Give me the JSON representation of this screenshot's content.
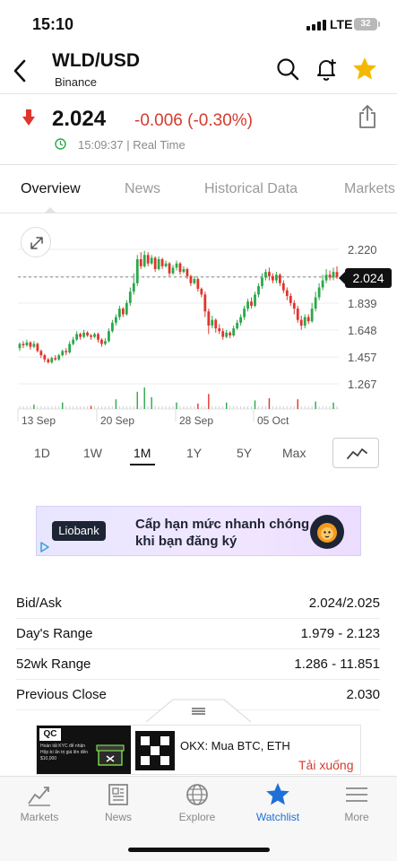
{
  "status_bar": {
    "time": "15:10",
    "network": "LTE",
    "battery": "32"
  },
  "header": {
    "title": "WLD/USD",
    "exchange": "Binance"
  },
  "quote": {
    "price": "2.024",
    "change": "-0.006 (-0.30%)",
    "timestamp": "15:09:37 | Real Time",
    "direction": "down"
  },
  "tabs": [
    {
      "label": "Overview",
      "active": true
    },
    {
      "label": "News",
      "active": false
    },
    {
      "label": "Historical Data",
      "active": false
    },
    {
      "label": "Markets",
      "active": false
    }
  ],
  "chart_data": {
    "type": "candlestick",
    "y_ticks": [
      "2.220",
      "2.029",
      "1.839",
      "1.648",
      "1.457",
      "1.267"
    ],
    "x_ticks": [
      "13 Sep",
      "20 Sep",
      "28 Sep",
      "05 Oct"
    ],
    "ylim": [
      1.2,
      2.3
    ],
    "current_price_label": "2.024",
    "current_price": 2.024,
    "up_color": "#2aa84a",
    "down_color": "#e0342b",
    "candles": [
      [
        1.52,
        1.55,
        1.5,
        1.56
      ],
      [
        1.55,
        1.54,
        1.52,
        1.57
      ],
      [
        1.54,
        1.56,
        1.53,
        1.58
      ],
      [
        1.56,
        1.53,
        1.51,
        1.57
      ],
      [
        1.53,
        1.55,
        1.52,
        1.57
      ],
      [
        1.55,
        1.5,
        1.49,
        1.56
      ],
      [
        1.5,
        1.47,
        1.45,
        1.51
      ],
      [
        1.47,
        1.44,
        1.42,
        1.48
      ],
      [
        1.44,
        1.42,
        1.41,
        1.45
      ],
      [
        1.42,
        1.45,
        1.41,
        1.46
      ],
      [
        1.45,
        1.44,
        1.43,
        1.47
      ],
      [
        1.44,
        1.47,
        1.43,
        1.48
      ],
      [
        1.47,
        1.5,
        1.46,
        1.51
      ],
      [
        1.5,
        1.49,
        1.47,
        1.52
      ],
      [
        1.49,
        1.55,
        1.48,
        1.57
      ],
      [
        1.55,
        1.58,
        1.54,
        1.6
      ],
      [
        1.58,
        1.62,
        1.57,
        1.64
      ],
      [
        1.62,
        1.6,
        1.58,
        1.63
      ],
      [
        1.6,
        1.63,
        1.59,
        1.65
      ],
      [
        1.63,
        1.61,
        1.6,
        1.64
      ],
      [
        1.61,
        1.6,
        1.58,
        1.62
      ],
      [
        1.6,
        1.62,
        1.59,
        1.63
      ],
      [
        1.62,
        1.58,
        1.56,
        1.63
      ],
      [
        1.58,
        1.55,
        1.53,
        1.59
      ],
      [
        1.55,
        1.57,
        1.54,
        1.59
      ],
      [
        1.57,
        1.64,
        1.56,
        1.66
      ],
      [
        1.64,
        1.7,
        1.63,
        1.72
      ],
      [
        1.7,
        1.74,
        1.68,
        1.76
      ],
      [
        1.74,
        1.8,
        1.72,
        1.82
      ],
      [
        1.8,
        1.76,
        1.74,
        1.81
      ],
      [
        1.76,
        1.84,
        1.75,
        1.86
      ],
      [
        1.84,
        1.92,
        1.82,
        1.95
      ],
      [
        1.92,
        1.98,
        1.9,
        2.05
      ],
      [
        1.98,
        2.15,
        1.96,
        2.18
      ],
      [
        2.15,
        2.1,
        2.08,
        2.2
      ],
      [
        2.1,
        2.18,
        2.09,
        2.21
      ],
      [
        2.18,
        2.12,
        2.1,
        2.2
      ],
      [
        2.12,
        2.16,
        2.11,
        2.18
      ],
      [
        2.16,
        2.08,
        2.06,
        2.17
      ],
      [
        2.08,
        2.15,
        2.07,
        2.17
      ],
      [
        2.15,
        2.1,
        2.08,
        2.16
      ],
      [
        2.1,
        2.12,
        2.09,
        2.14
      ],
      [
        2.12,
        2.05,
        2.03,
        2.13
      ],
      [
        2.05,
        2.09,
        2.04,
        2.11
      ],
      [
        2.09,
        2.12,
        2.07,
        2.14
      ],
      [
        2.12,
        2.06,
        2.04,
        2.13
      ],
      [
        2.06,
        2.08,
        2.05,
        2.1
      ],
      [
        2.08,
        2.03,
        2.01,
        2.09
      ],
      [
        2.03,
        1.98,
        1.96,
        2.04
      ],
      [
        1.98,
        2.01,
        1.97,
        2.03
      ],
      [
        2.01,
        1.94,
        1.92,
        2.02
      ],
      [
        1.94,
        1.9,
        1.88,
        1.95
      ],
      [
        1.9,
        1.78,
        1.74,
        1.92
      ],
      [
        1.78,
        1.68,
        1.62,
        1.8
      ],
      [
        1.68,
        1.72,
        1.66,
        1.75
      ],
      [
        1.72,
        1.66,
        1.63,
        1.73
      ],
      [
        1.66,
        1.64,
        1.62,
        1.69
      ],
      [
        1.64,
        1.6,
        1.58,
        1.66
      ],
      [
        1.6,
        1.63,
        1.59,
        1.65
      ],
      [
        1.63,
        1.61,
        1.59,
        1.64
      ],
      [
        1.61,
        1.66,
        1.6,
        1.68
      ],
      [
        1.66,
        1.7,
        1.65,
        1.72
      ],
      [
        1.7,
        1.74,
        1.68,
        1.76
      ],
      [
        1.74,
        1.8,
        1.72,
        1.82
      ],
      [
        1.8,
        1.85,
        1.78,
        1.87
      ],
      [
        1.85,
        1.82,
        1.8,
        1.88
      ],
      [
        1.82,
        1.9,
        1.81,
        1.92
      ],
      [
        1.9,
        1.96,
        1.88,
        1.98
      ],
      [
        1.96,
        2.02,
        1.94,
        2.05
      ],
      [
        2.02,
        2.06,
        2.0,
        2.08
      ],
      [
        2.06,
        2.03,
        2.0,
        2.09
      ],
      [
        2.03,
        2.0,
        1.98,
        2.05
      ],
      [
        2.0,
        2.04,
        1.98,
        2.06
      ],
      [
        2.04,
        1.98,
        1.96,
        2.05
      ],
      [
        1.98,
        1.93,
        1.91,
        2.0
      ],
      [
        1.93,
        1.89,
        1.86,
        1.95
      ],
      [
        1.89,
        1.84,
        1.82,
        1.91
      ],
      [
        1.84,
        1.8,
        1.76,
        1.86
      ],
      [
        1.8,
        1.72,
        1.7,
        1.82
      ],
      [
        1.72,
        1.68,
        1.65,
        1.75
      ],
      [
        1.68,
        1.74,
        1.66,
        1.76
      ],
      [
        1.74,
        1.71,
        1.69,
        1.76
      ],
      [
        1.71,
        1.8,
        1.7,
        1.84
      ],
      [
        1.8,
        1.88,
        1.78,
        1.92
      ],
      [
        1.88,
        1.95,
        1.86,
        1.98
      ],
      [
        1.95,
        2.0,
        1.93,
        2.04
      ],
      [
        2.0,
        2.04,
        1.98,
        2.08
      ],
      [
        2.04,
        2.02,
        2.0,
        2.07
      ],
      [
        2.02,
        2.06,
        2.0,
        2.09
      ],
      [
        2.06,
        2.024,
        2.01,
        2.1
      ]
    ],
    "volume_spikes": [
      [
        4,
        0.2
      ],
      [
        12,
        0.3
      ],
      [
        20,
        0.15
      ],
      [
        27,
        0.45
      ],
      [
        33,
        0.8
      ],
      [
        35,
        1.0
      ],
      [
        37,
        0.55
      ],
      [
        44,
        0.3
      ],
      [
        50,
        0.25
      ],
      [
        53,
        0.7
      ],
      [
        58,
        0.3
      ],
      [
        66,
        0.4
      ],
      [
        70,
        0.5
      ],
      [
        78,
        0.45
      ],
      [
        83,
        0.35
      ],
      [
        88,
        0.3
      ]
    ]
  },
  "periods": [
    {
      "label": "1D",
      "active": false
    },
    {
      "label": "1W",
      "active": false
    },
    {
      "label": "1M",
      "active": true
    },
    {
      "label": "1Y",
      "active": false
    },
    {
      "label": "5Y",
      "active": false
    },
    {
      "label": "Max",
      "active": false
    }
  ],
  "ad_top": {
    "brand": "Liobank",
    "text": "Cấp hạn mức nhanh chóng khi bạn đăng ký"
  },
  "stats": [
    {
      "label": "Bid/Ask",
      "value": "2.024/2.025"
    },
    {
      "label": "Day's Range",
      "value": "1.979 - 2.123"
    },
    {
      "label": "52wk Range",
      "value": "1.286 - 11.851"
    },
    {
      "label": "Previous Close",
      "value": "2.030"
    }
  ],
  "ad_bottom": {
    "badge": "QC",
    "tiny_text": "Hoàn tất KYC để nhận Hộp bí ẩn trị giá lên đến $10,000",
    "title": "OKX: Mua BTC, ETH",
    "cta": "Tải xuống"
  },
  "tabbar": [
    {
      "label": "Markets",
      "icon": "markets-icon",
      "active": false
    },
    {
      "label": "News",
      "icon": "news-icon",
      "active": false
    },
    {
      "label": "Explore",
      "icon": "globe-icon",
      "active": false
    },
    {
      "label": "Watchlist",
      "icon": "star-icon",
      "active": true
    },
    {
      "label": "More",
      "icon": "menu-icon",
      "active": false
    }
  ],
  "colors": {
    "accent": "#1f6fd8",
    "down": "#d33b2f",
    "up": "#2aa84a",
    "star": "#f5b800"
  }
}
